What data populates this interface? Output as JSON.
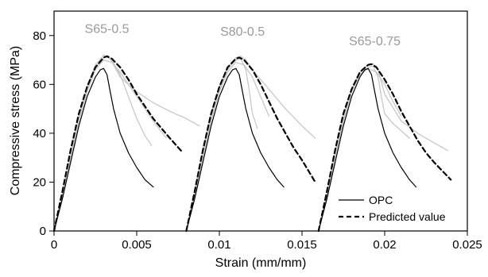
{
  "chart_data": {
    "type": "line",
    "title": "",
    "xlabel": "Strain (mm/mm)",
    "ylabel": "Compressive stress (MPa)",
    "xlim": [
      0,
      0.025
    ],
    "ylim": [
      0,
      90
    ],
    "x_ticks": [
      0,
      0.005,
      0.01,
      0.015,
      0.02,
      0.025
    ],
    "x_tick_labels": [
      "0",
      "0.005",
      "0.01",
      "0.015",
      "0.02",
      "0.025"
    ],
    "y_ticks": [
      0,
      20,
      40,
      60,
      80
    ],
    "y_tick_labels": [
      "0",
      "20",
      "40",
      "60",
      "80"
    ],
    "grid": false,
    "legend_position": "bottom-right",
    "legend": [
      {
        "label": "OPC",
        "style": "solid",
        "color": "#000000"
      },
      {
        "label": "Predicted value",
        "style": "dashed",
        "color": "#000000"
      }
    ],
    "annotations": [
      {
        "text": "S65-0.5",
        "x": 0.0032,
        "y": 81
      },
      {
        "text": "S80-0.5",
        "x": 0.0114,
        "y": 80
      },
      {
        "text": "S65-0.75",
        "x": 0.0194,
        "y": 76
      }
    ],
    "series": [
      {
        "group": "S65-0.5",
        "kind": "experiment",
        "color": "#c8c8c8",
        "x": [
          0,
          0.0005,
          0.001,
          0.0015,
          0.002,
          0.0025,
          0.003,
          0.0033,
          0.0036,
          0.004,
          0.005,
          0.006,
          0.007,
          0.008,
          0.0088
        ],
        "y": [
          0,
          14,
          30,
          46,
          58,
          67,
          71,
          71.5,
          68,
          63,
          57,
          52.5,
          49,
          46,
          43
        ]
      },
      {
        "group": "S65-0.5",
        "kind": "experiment",
        "color": "#c8c8c8",
        "x": [
          0,
          0.0005,
          0.001,
          0.0015,
          0.002,
          0.0025,
          0.003,
          0.0035,
          0.004,
          0.0045,
          0.005,
          0.0055,
          0.0059
        ],
        "y": [
          0,
          15,
          31,
          47,
          59,
          68,
          72,
          70,
          64,
          55,
          46,
          39,
          35
        ]
      },
      {
        "group": "S65-0.5",
        "kind": "experiment",
        "color": "#c8c8c8",
        "x": [
          0,
          0.0005,
          0.001,
          0.0015,
          0.002,
          0.0025,
          0.003,
          0.0035,
          0.004,
          0.005,
          0.006,
          0.0068
        ],
        "y": [
          0,
          14,
          30,
          45,
          57,
          66,
          70,
          69,
          65,
          55,
          45,
          38
        ]
      },
      {
        "group": "S65-0.5",
        "kind": "OPC",
        "color": "#000000",
        "x": [
          0,
          0.0005,
          0.001,
          0.0015,
          0.002,
          0.0025,
          0.0028,
          0.003,
          0.0032,
          0.0034,
          0.0036,
          0.004,
          0.0045,
          0.005,
          0.0055,
          0.006
        ],
        "y": [
          0,
          13,
          28,
          43,
          55,
          63,
          66,
          66.5,
          64,
          57,
          50,
          40,
          32,
          26,
          21,
          18
        ]
      },
      {
        "group": "S65-0.5",
        "kind": "predicted",
        "color": "#000000",
        "x": [
          0,
          0.0005,
          0.001,
          0.0015,
          0.002,
          0.0025,
          0.003,
          0.0032,
          0.0035,
          0.004,
          0.0045,
          0.005,
          0.0055,
          0.006,
          0.0065,
          0.007,
          0.0078
        ],
        "y": [
          0,
          16,
          33,
          48,
          59,
          67,
          71,
          71.5,
          70.5,
          67,
          62,
          56,
          51,
          46,
          42,
          38,
          32
        ]
      },
      {
        "group": "S80-0.5",
        "kind": "experiment",
        "color": "#c8c8c8",
        "x": [
          0.008,
          0.0085,
          0.009,
          0.0095,
          0.01,
          0.0105,
          0.011,
          0.0113,
          0.0116,
          0.012,
          0.013,
          0.014,
          0.015,
          0.0158
        ],
        "y": [
          0,
          16,
          33,
          48,
          59,
          67,
          71,
          71.5,
          70,
          66,
          58,
          50,
          43,
          38
        ]
      },
      {
        "group": "S80-0.5",
        "kind": "experiment",
        "color": "#c8c8c8",
        "x": [
          0.008,
          0.0085,
          0.009,
          0.0095,
          0.01,
          0.0105,
          0.011,
          0.0113,
          0.0116,
          0.0118,
          0.012,
          0.0123
        ],
        "y": [
          0,
          15,
          31,
          46,
          58,
          66,
          70,
          70.5,
          66,
          58,
          48,
          42
        ]
      },
      {
        "group": "S80-0.5",
        "kind": "experiment",
        "color": "#c8c8c8",
        "x": [
          0.008,
          0.0085,
          0.009,
          0.0095,
          0.01,
          0.0105,
          0.011,
          0.0115,
          0.012,
          0.0125,
          0.013
        ],
        "y": [
          0,
          14,
          30,
          45,
          57,
          65,
          69,
          68,
          63,
          55,
          47
        ]
      },
      {
        "group": "S80-0.5",
        "kind": "OPC",
        "color": "#000000",
        "x": [
          0.008,
          0.0085,
          0.009,
          0.0095,
          0.01,
          0.0105,
          0.0108,
          0.011,
          0.0112,
          0.0114,
          0.0116,
          0.012,
          0.0125,
          0.013,
          0.0135,
          0.0139
        ],
        "y": [
          0,
          13,
          28,
          43,
          55,
          63,
          66,
          66.5,
          64,
          57,
          50,
          40,
          32,
          26,
          21,
          18
        ]
      },
      {
        "group": "S80-0.5",
        "kind": "predicted",
        "color": "#000000",
        "x": [
          0.008,
          0.0085,
          0.009,
          0.0095,
          0.01,
          0.0105,
          0.011,
          0.0112,
          0.0115,
          0.012,
          0.0125,
          0.013,
          0.0135,
          0.014,
          0.0145,
          0.015,
          0.0158
        ],
        "y": [
          0,
          16,
          33,
          48,
          59,
          67,
          70.5,
          71,
          70,
          66,
          60,
          53,
          46,
          40,
          34,
          29,
          20
        ]
      },
      {
        "group": "S65-0.75",
        "kind": "experiment",
        "color": "#c8c8c8",
        "x": [
          0.016,
          0.0165,
          0.017,
          0.0175,
          0.018,
          0.0185,
          0.019,
          0.0193,
          0.0196,
          0.02,
          0.021,
          0.022,
          0.023,
          0.0238
        ],
        "y": [
          0,
          15,
          32,
          47,
          58,
          65,
          68,
          68.5,
          66,
          56,
          45,
          40,
          36,
          33
        ]
      },
      {
        "group": "S65-0.75",
        "kind": "experiment",
        "color": "#c8c8c8",
        "x": [
          0.016,
          0.0165,
          0.017,
          0.0175,
          0.018,
          0.0185,
          0.019,
          0.0193,
          0.0196,
          0.0198,
          0.02,
          0.0205,
          0.021,
          0.0215
        ],
        "y": [
          0,
          14,
          30,
          45,
          57,
          64,
          67,
          67.5,
          63,
          55,
          48,
          44,
          41,
          38
        ]
      },
      {
        "group": "S65-0.75",
        "kind": "experiment",
        "color": "#c8c8c8",
        "x": [
          0.016,
          0.0165,
          0.017,
          0.0175,
          0.018,
          0.0185,
          0.019,
          0.0195,
          0.02,
          0.0205,
          0.021
        ],
        "y": [
          0,
          14,
          31,
          46,
          57,
          64,
          66.5,
          65,
          60,
          53,
          47
        ]
      },
      {
        "group": "S65-0.75",
        "kind": "OPC",
        "color": "#000000",
        "x": [
          0.016,
          0.0165,
          0.017,
          0.0175,
          0.018,
          0.0185,
          0.0188,
          0.019,
          0.0192,
          0.0194,
          0.0196,
          0.02,
          0.0205,
          0.021,
          0.0215,
          0.0219
        ],
        "y": [
          0,
          13,
          28,
          43,
          55,
          63,
          66,
          66.5,
          64,
          57,
          50,
          40,
          32,
          26,
          21,
          18
        ]
      },
      {
        "group": "S65-0.75",
        "kind": "predicted",
        "color": "#000000",
        "x": [
          0.016,
          0.0165,
          0.017,
          0.0175,
          0.018,
          0.0185,
          0.019,
          0.0192,
          0.0195,
          0.02,
          0.0205,
          0.021,
          0.0215,
          0.022,
          0.0225,
          0.023,
          0.024
        ],
        "y": [
          0,
          16,
          33,
          48,
          58,
          65,
          68,
          68.3,
          67,
          62,
          56,
          49,
          43,
          37,
          32,
          28,
          21
        ]
      }
    ]
  }
}
